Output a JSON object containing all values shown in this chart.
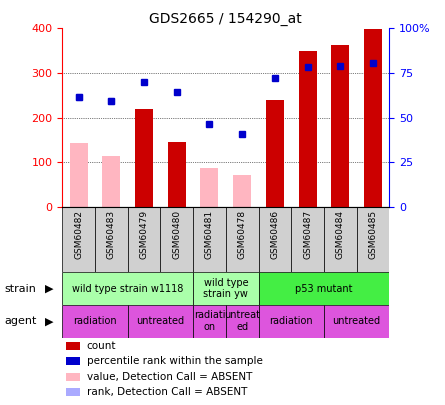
{
  "title": "GDS2665 / 154290_at",
  "samples": [
    "GSM60482",
    "GSM60483",
    "GSM60479",
    "GSM60480",
    "GSM60481",
    "GSM60478",
    "GSM60486",
    "GSM60487",
    "GSM60484",
    "GSM60485"
  ],
  "count_values": [
    null,
    null,
    220,
    145,
    null,
    null,
    240,
    350,
    362,
    398
  ],
  "rank_values": [
    245,
    238,
    280,
    257,
    185,
    163,
    288,
    313,
    315,
    323
  ],
  "value_absent": [
    143,
    113,
    null,
    null,
    87,
    72,
    null,
    null,
    null,
    null
  ],
  "rank_absent": [
    245,
    238,
    null,
    null,
    null,
    null,
    null,
    null,
    null,
    null
  ],
  "ylim_left": [
    0,
    400
  ],
  "ylim_right": [
    0,
    100
  ],
  "yticks_left": [
    0,
    100,
    200,
    300,
    400
  ],
  "yticks_right": [
    0,
    25,
    50,
    75,
    100
  ],
  "ytick_labels_right": [
    "0",
    "25",
    "50",
    "75",
    "100%"
  ],
  "gridlines": [
    100,
    200,
    300
  ],
  "strain_groups": [
    {
      "label": "wild type strain w1118",
      "start": 0,
      "end": 4,
      "color": "#aaffaa"
    },
    {
      "label": "wild type\nstrain yw",
      "start": 4,
      "end": 6,
      "color": "#aaffaa"
    },
    {
      "label": "p53 mutant",
      "start": 6,
      "end": 10,
      "color": "#44ee44"
    }
  ],
  "agent_groups": [
    {
      "label": "radiation",
      "start": 0,
      "end": 2
    },
    {
      "label": "untreated",
      "start": 2,
      "end": 4
    },
    {
      "label": "radiati-\non",
      "start": 4,
      "end": 5
    },
    {
      "label": "untreat-\ned",
      "start": 5,
      "end": 6
    },
    {
      "label": "radiation",
      "start": 6,
      "end": 8
    },
    {
      "label": "untreated",
      "start": 8,
      "end": 10
    }
  ],
  "legend_items": [
    {
      "label": "count",
      "color": "#cc0000"
    },
    {
      "label": "percentile rank within the sample",
      "color": "#0000cc"
    },
    {
      "label": "value, Detection Call = ABSENT",
      "color": "#ffb6c1"
    },
    {
      "label": "rank, Detection Call = ABSENT",
      "color": "#aaaaff"
    }
  ],
  "bar_width": 0.55,
  "count_color": "#cc0000",
  "rank_color": "#0000cc",
  "value_absent_color": "#ffb6c1",
  "rank_absent_color": "#aaaaff",
  "agent_color": "#dd55dd",
  "bg_color": "#ffffff"
}
